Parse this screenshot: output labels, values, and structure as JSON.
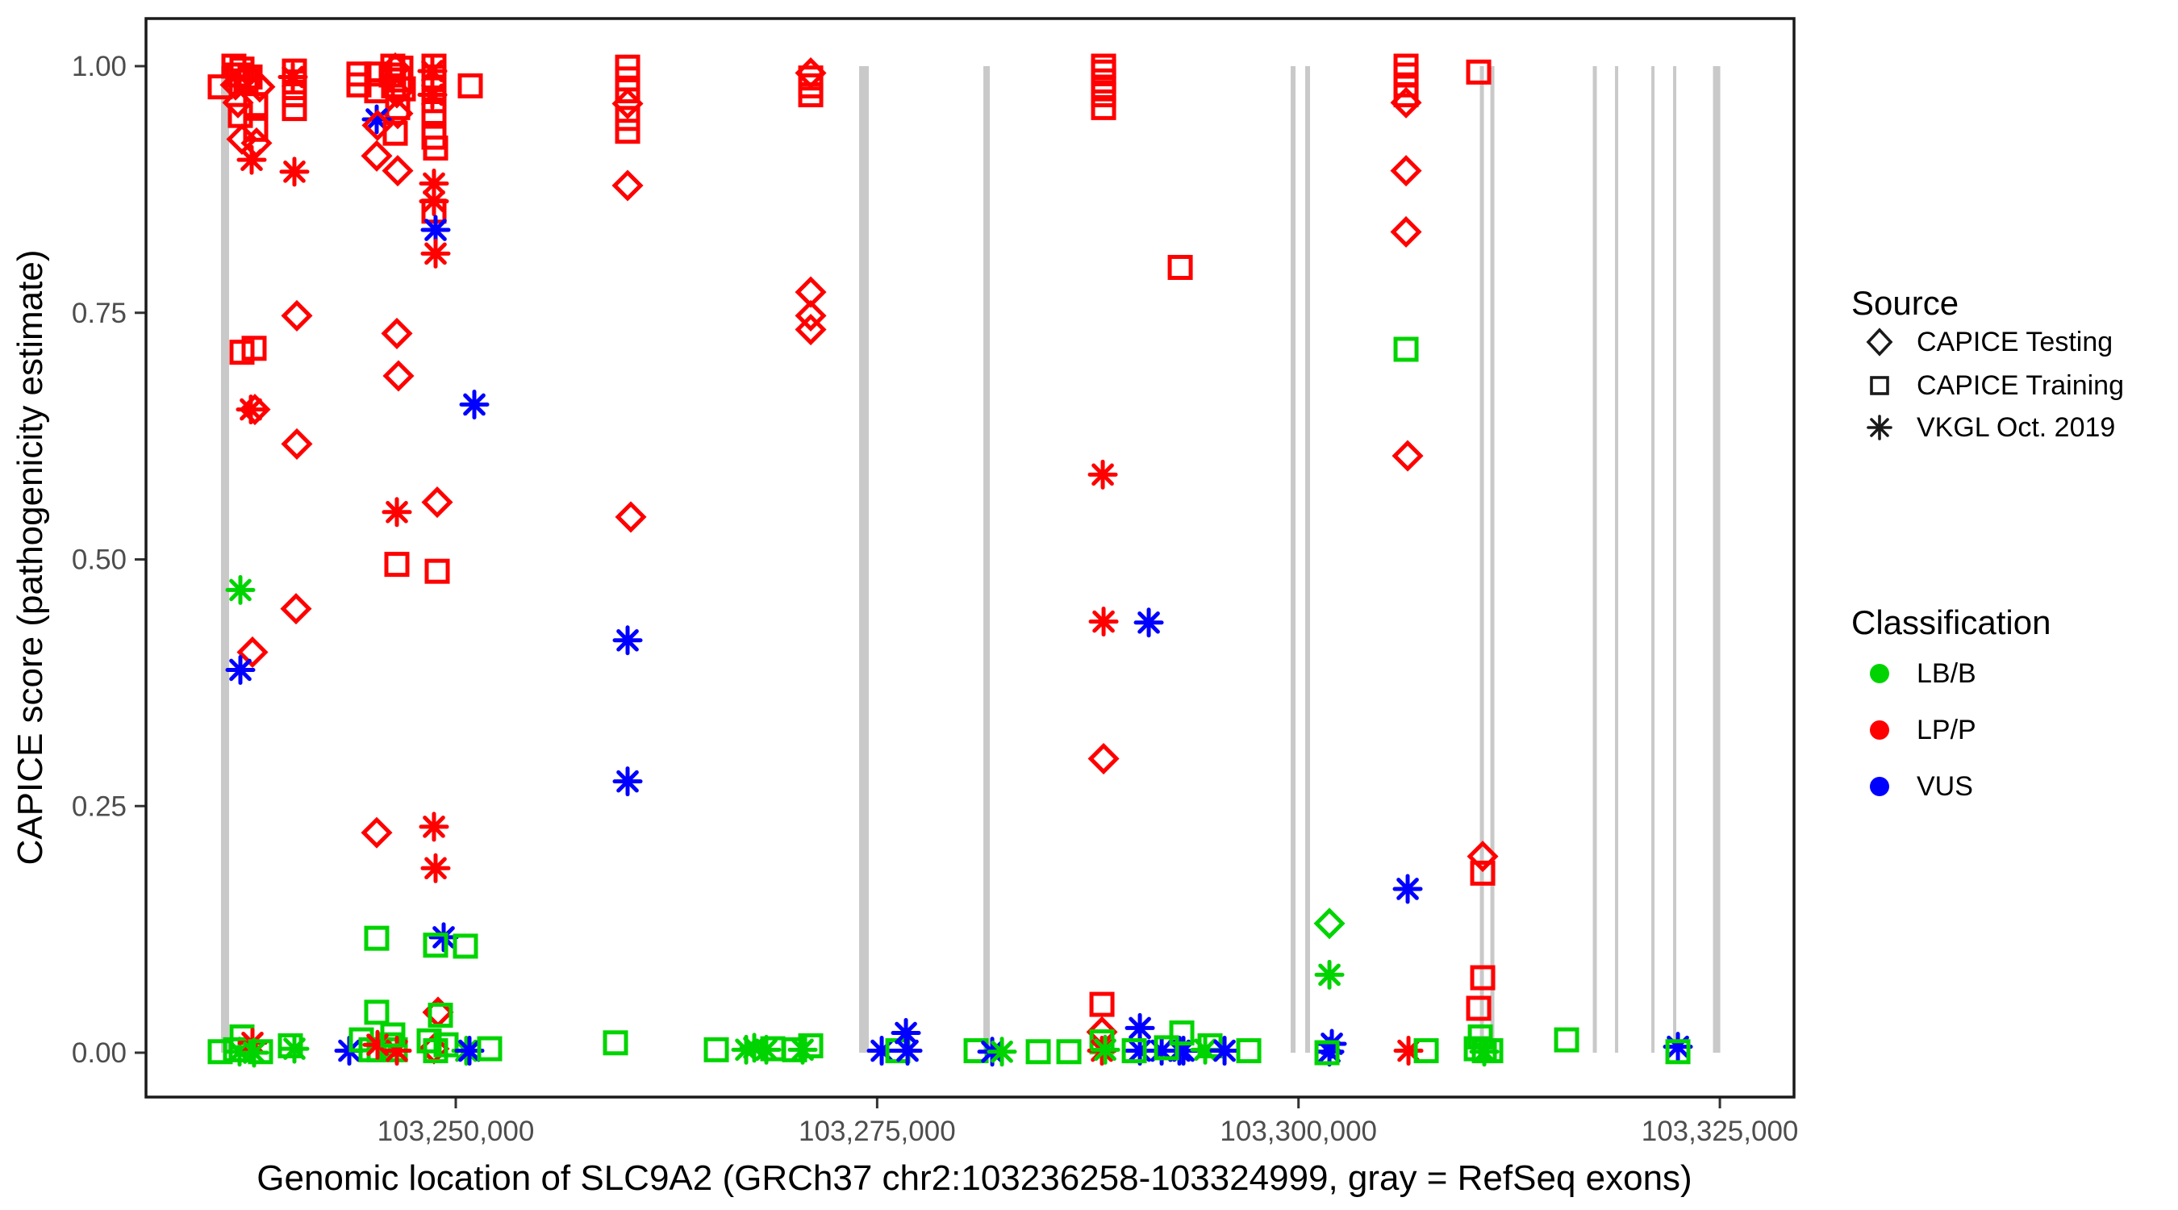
{
  "legend_source": {
    "title": "Source",
    "items": [
      {
        "shape": "diamond",
        "label": "CAPICE Testing"
      },
      {
        "shape": "square",
        "label": "CAPICE Training"
      },
      {
        "shape": "asterisk",
        "label": "VKGL Oct. 2019"
      }
    ]
  },
  "legend_class": {
    "title": "Classification",
    "items": [
      {
        "key": "B",
        "color": "#00D400",
        "label": "LB/B"
      },
      {
        "key": "P",
        "color": "#FF0000",
        "label": "LP/P"
      },
      {
        "key": "V",
        "color": "#0000FF",
        "label": "VUS"
      }
    ]
  },
  "chart_data": {
    "type": "scatter",
    "title": "",
    "xlabel": "Genomic location of SLC9A2 (GRCh37 chr2:103236258-103324999, gray = RefSeq exons)",
    "ylabel": "CAPICE score (pathogenicity estimate)",
    "x_ticks": {
      "values": [
        103250000,
        103275000,
        103300000,
        103325000
      ],
      "labels": [
        "103,250,000",
        "103,275,000",
        "103,300,000",
        "103,325,000"
      ]
    },
    "y_ticks": {
      "values": [
        0,
        0.25,
        0.5,
        0.75,
        1.0
      ],
      "labels": [
        "0.00",
        "0.25",
        "0.50",
        "0.75",
        "1.00"
      ]
    },
    "x_range_bp": [
      103231800,
      103329400
    ],
    "y_range": [
      -0.047,
      1.047
    ],
    "grid": "off",
    "legend_position": "right",
    "colors": {
      "LB/B": "#00D400",
      "LP/P": "#FF0000",
      "VUS": "#0000FF"
    },
    "shape_meaning": {
      "diamond": "CAPICE Testing",
      "square": "CAPICE Training",
      "asterisk": "VKGL Oct. 2019"
    },
    "exon_color": "#C9C9C9",
    "exons_bp": [
      [
        103236311,
        479
      ],
      [
        103274219,
        574
      ],
      [
        103281495,
        383
      ],
      [
        103299680,
        287
      ],
      [
        103300541,
        287
      ],
      [
        103310880,
        239
      ],
      [
        103311503,
        239
      ],
      [
        103317581,
        239
      ],
      [
        103318873,
        191
      ],
      [
        103321027,
        191
      ],
      [
        103322319,
        191
      ],
      [
        103324808,
        431
      ]
    ],
    "points": [
      [
        103236024,
        0.979,
        "s",
        "P"
      ],
      [
        103236838,
        1.0,
        "s",
        "P"
      ],
      [
        103237316,
        0.997,
        "s",
        "P"
      ],
      [
        103237077,
        0.991,
        "s",
        "P"
      ],
      [
        103237795,
        0.989,
        "s",
        "P"
      ],
      [
        103237556,
        0.985,
        "s",
        "P"
      ],
      [
        103236933,
        0.981,
        "d",
        "P"
      ],
      [
        103238369,
        0.979,
        "d",
        "P"
      ],
      [
        103237077,
        0.963,
        "d",
        "P"
      ],
      [
        103238130,
        0.961,
        "s",
        "P"
      ],
      [
        103237221,
        0.95,
        "s",
        "P"
      ],
      [
        103238130,
        0.936,
        "s",
        "P"
      ],
      [
        103237316,
        0.926,
        "d",
        "P"
      ],
      [
        103238178,
        0.922,
        "d",
        "P"
      ],
      [
        103237891,
        0.905,
        "a",
        "P"
      ],
      [
        103237316,
        0.71,
        "s",
        "P"
      ],
      [
        103238034,
        0.714,
        "s",
        "P"
      ],
      [
        103237843,
        0.652,
        "a",
        "P"
      ],
      [
        103238082,
        0.652,
        "d",
        "P"
      ],
      [
        103237939,
        0.406,
        "d",
        "P"
      ],
      [
        103237221,
        0.469,
        "a",
        "B"
      ],
      [
        103237221,
        0.388,
        "a",
        "V"
      ],
      [
        103236024,
        0.001,
        "s",
        "B"
      ],
      [
        103236933,
        0.003,
        "s",
        "B"
      ],
      [
        103237316,
        0.016,
        "s",
        "B"
      ],
      [
        103237173,
        0.001,
        "a",
        "B"
      ],
      [
        103237939,
        0.01,
        "a",
        "P"
      ],
      [
        103238034,
        0.0,
        "a",
        "B"
      ],
      [
        103238417,
        0.001,
        "s",
        "B"
      ],
      [
        103240427,
        0.995,
        "s",
        "P"
      ],
      [
        103240332,
        0.989,
        "a",
        "P"
      ],
      [
        103240427,
        0.984,
        "s",
        "P"
      ],
      [
        103240427,
        0.971,
        "s",
        "P"
      ],
      [
        103240427,
        0.957,
        "s",
        "P"
      ],
      [
        103240427,
        0.893,
        "a",
        "P"
      ],
      [
        103240571,
        0.747,
        "d",
        "P"
      ],
      [
        103240571,
        0.617,
        "d",
        "P"
      ],
      [
        103240523,
        0.45,
        "d",
        "P"
      ],
      [
        103240188,
        0.007,
        "s",
        "B"
      ],
      [
        103240427,
        0.004,
        "a",
        "B"
      ],
      [
        103243682,
        0.002,
        "a",
        "V"
      ],
      [
        103244256,
        0.992,
        "s",
        "P"
      ],
      [
        103244256,
        0.981,
        "s",
        "P"
      ],
      [
        103245309,
        0.992,
        "s",
        "P"
      ],
      [
        103245309,
        0.975,
        "s",
        "P"
      ],
      [
        103246266,
        1.0,
        "s",
        "P"
      ],
      [
        103246745,
        0.998,
        "s",
        "P"
      ],
      [
        103246171,
        0.991,
        "s",
        "P"
      ],
      [
        103246649,
        0.986,
        "s",
        "P"
      ],
      [
        103246314,
        0.98,
        "s",
        "P"
      ],
      [
        103246889,
        0.977,
        "s",
        "P"
      ],
      [
        103246410,
        0.998,
        "d",
        "P"
      ],
      [
        103246506,
        0.973,
        "d",
        "P"
      ],
      [
        103246554,
        0.958,
        "s",
        "P"
      ],
      [
        103246554,
        0.952,
        "d",
        "P"
      ],
      [
        103245309,
        0.946,
        "a",
        "V"
      ],
      [
        103245357,
        0.94,
        "d",
        "P"
      ],
      [
        103246410,
        0.932,
        "s",
        "P"
      ],
      [
        103245309,
        0.909,
        "d",
        "P"
      ],
      [
        103246554,
        0.894,
        "d",
        "P"
      ],
      [
        103246506,
        0.729,
        "d",
        "P"
      ],
      [
        103246601,
        0.686,
        "d",
        "P"
      ],
      [
        103246506,
        0.548,
        "a",
        "P"
      ],
      [
        103246506,
        0.495,
        "s",
        "P"
      ],
      [
        103245309,
        0.223,
        "d",
        "P"
      ],
      [
        103245309,
        0.116,
        "s",
        "B"
      ],
      [
        103245309,
        0.041,
        "s",
        "B"
      ],
      [
        103244400,
        0.013,
        "s",
        "B"
      ],
      [
        103244974,
        0.003,
        "s",
        "B"
      ],
      [
        103245453,
        0.003,
        "s",
        "B"
      ],
      [
        103246075,
        0.008,
        "s",
        "B"
      ],
      [
        103246410,
        0.003,
        "s",
        "B"
      ],
      [
        103245357,
        0.008,
        "a",
        "P"
      ],
      [
        103246506,
        0.002,
        "a",
        "P"
      ],
      [
        103246266,
        0.018,
        "s",
        "B"
      ],
      [
        103248707,
        1.0,
        "s",
        "P"
      ],
      [
        103248707,
        0.989,
        "s",
        "P"
      ],
      [
        103248707,
        0.977,
        "s",
        "P"
      ],
      [
        103248707,
        0.965,
        "s",
        "P"
      ],
      [
        103248707,
        0.953,
        "s",
        "P"
      ],
      [
        103248611,
        0.995,
        "a",
        "P"
      ],
      [
        103248611,
        0.971,
        "a",
        "P"
      ],
      [
        103248707,
        0.928,
        "s",
        "P"
      ],
      [
        103248803,
        0.917,
        "s",
        "P"
      ],
      [
        103248707,
        0.881,
        "a",
        "P"
      ],
      [
        103248707,
        0.863,
        "a",
        "P"
      ],
      [
        103248707,
        0.853,
        "s",
        "P"
      ],
      [
        103248803,
        0.834,
        "a",
        "V"
      ],
      [
        103248803,
        0.81,
        "a",
        "P"
      ],
      [
        103248899,
        0.558,
        "d",
        "P"
      ],
      [
        103248899,
        0.488,
        "s",
        "P"
      ],
      [
        103248707,
        0.229,
        "a",
        "P"
      ],
      [
        103248803,
        0.187,
        "a",
        "P"
      ],
      [
        103249282,
        0.117,
        "a",
        "V"
      ],
      [
        103248803,
        0.109,
        "s",
        "B"
      ],
      [
        103248947,
        0.041,
        "d",
        "P"
      ],
      [
        103249090,
        0.038,
        "s",
        "B"
      ],
      [
        103248707,
        0.004,
        "d",
        "P"
      ],
      [
        103248420,
        0.012,
        "s",
        "B"
      ],
      [
        103248803,
        0.002,
        "s",
        "B"
      ],
      [
        103249425,
        0.008,
        "s",
        "B"
      ],
      [
        103250574,
        0.108,
        "s",
        "B"
      ],
      [
        103250622,
        0.002,
        "a",
        "B"
      ],
      [
        103250813,
        0.002,
        "a",
        "V"
      ],
      [
        103250861,
        0.98,
        "s",
        "P"
      ],
      [
        103251101,
        0.657,
        "a",
        "V"
      ],
      [
        103252010,
        0.004,
        "s",
        "B"
      ],
      [
        103259477,
        0.01,
        "s",
        "B"
      ],
      [
        103260195,
        0.999,
        "s",
        "P"
      ],
      [
        103260195,
        0.987,
        "s",
        "P"
      ],
      [
        103260195,
        0.975,
        "s",
        "P"
      ],
      [
        103260195,
        0.962,
        "d",
        "P"
      ],
      [
        103260195,
        0.947,
        "s",
        "P"
      ],
      [
        103260195,
        0.934,
        "s",
        "P"
      ],
      [
        103260195,
        0.879,
        "d",
        "P"
      ],
      [
        103260195,
        0.418,
        "a",
        "V"
      ],
      [
        103260195,
        0.275,
        "a",
        "V"
      ],
      [
        103260386,
        0.543,
        "d",
        "P"
      ],
      [
        103265460,
        0.003,
        "s",
        "B"
      ],
      [
        103267231,
        0.003,
        "a",
        "B"
      ],
      [
        103267710,
        0.005,
        "a",
        "B"
      ],
      [
        103268427,
        0.003,
        "a",
        "B"
      ],
      [
        103268810,
        0.004,
        "s",
        "B"
      ],
      [
        103270103,
        0.003,
        "s",
        "B"
      ],
      [
        103270581,
        0.003,
        "a",
        "B"
      ],
      [
        103271060,
        0.007,
        "s",
        "B"
      ],
      [
        103271060,
        0.993,
        "d",
        "P"
      ],
      [
        103271060,
        0.988,
        "s",
        "P"
      ],
      [
        103271060,
        0.98,
        "s",
        "P"
      ],
      [
        103271060,
        0.971,
        "s",
        "P"
      ],
      [
        103271060,
        0.771,
        "d",
        "P"
      ],
      [
        103271060,
        0.747,
        "d",
        "P"
      ],
      [
        103271060,
        0.733,
        "d",
        "P"
      ],
      [
        103275272,
        0.002,
        "a",
        "V"
      ],
      [
        103276229,
        0.002,
        "s",
        "B"
      ],
      [
        103276708,
        0.02,
        "a",
        "V"
      ],
      [
        103276804,
        0.002,
        "a",
        "V"
      ],
      [
        103280872,
        0.002,
        "s",
        "B"
      ],
      [
        103281830,
        0.001,
        "a",
        "V"
      ],
      [
        103282404,
        0.001,
        "a",
        "B"
      ],
      [
        103284558,
        0.001,
        "s",
        "B"
      ],
      [
        103286377,
        0.001,
        "s",
        "B"
      ],
      [
        103288435,
        1.0,
        "s",
        "P"
      ],
      [
        103288435,
        0.994,
        "s",
        "P"
      ],
      [
        103288435,
        0.985,
        "s",
        "P"
      ],
      [
        103288435,
        0.977,
        "s",
        "P"
      ],
      [
        103288435,
        0.971,
        "s",
        "P"
      ],
      [
        103288435,
        0.958,
        "s",
        "P"
      ],
      [
        103288387,
        0.586,
        "a",
        "P"
      ],
      [
        103288435,
        0.437,
        "a",
        "P"
      ],
      [
        103288435,
        0.298,
        "d",
        "P"
      ],
      [
        103288339,
        0.049,
        "s",
        "P"
      ],
      [
        103288339,
        0.021,
        "d",
        "P"
      ],
      [
        103288339,
        0.011,
        "s",
        "B"
      ],
      [
        103288339,
        0.002,
        "a",
        "P"
      ],
      [
        103288531,
        0.003,
        "a",
        "B"
      ],
      [
        103291115,
        0.436,
        "a",
        "V"
      ],
      [
        103292982,
        0.796,
        "s",
        "P"
      ],
      [
        103290589,
        0.025,
        "a",
        "V"
      ],
      [
        103290589,
        0.002,
        "a",
        "V"
      ],
      [
        103290254,
        0.002,
        "s",
        "B"
      ],
      [
        103291881,
        0.002,
        "a",
        "V"
      ],
      [
        103292934,
        0.002,
        "a",
        "V"
      ],
      [
        103293173,
        0.002,
        "a",
        "V"
      ],
      [
        103292168,
        0.005,
        "s",
        "B"
      ],
      [
        103293077,
        0.02,
        "s",
        "B"
      ],
      [
        103294465,
        0.003,
        "a",
        "B"
      ],
      [
        103294752,
        0.007,
        "s",
        "B"
      ],
      [
        103295613,
        0.002,
        "a",
        "V"
      ],
      [
        103297049,
        0.002,
        "s",
        "B"
      ],
      [
        103301978,
        0.009,
        "a",
        "V"
      ],
      [
        103301835,
        0.001,
        "a",
        "V"
      ],
      [
        103301691,
        0.0,
        "s",
        "B"
      ],
      [
        103301835,
        0.131,
        "d",
        "B"
      ],
      [
        103301835,
        0.079,
        "a",
        "B"
      ],
      [
        103306381,
        1.0,
        "s",
        "P"
      ],
      [
        103306381,
        0.991,
        "s",
        "P"
      ],
      [
        103306381,
        0.981,
        "s",
        "P"
      ],
      [
        103306381,
        0.971,
        "s",
        "P"
      ],
      [
        103306381,
        0.963,
        "d",
        "P"
      ],
      [
        103306381,
        0.894,
        "d",
        "P"
      ],
      [
        103306381,
        0.832,
        "d",
        "P"
      ],
      [
        103306381,
        0.713,
        "s",
        "B"
      ],
      [
        103306477,
        0.605,
        "d",
        "P"
      ],
      [
        103306477,
        0.166,
        "a",
        "V"
      ],
      [
        103306525,
        0.002,
        "a",
        "P"
      ],
      [
        103307578,
        0.002,
        "s",
        "B"
      ],
      [
        103310689,
        0.994,
        "s",
        "P"
      ],
      [
        103310928,
        0.199,
        "d",
        "P"
      ],
      [
        103310928,
        0.182,
        "s",
        "P"
      ],
      [
        103310928,
        0.076,
        "s",
        "P"
      ],
      [
        103310689,
        0.045,
        "s",
        "P"
      ],
      [
        103310785,
        0.016,
        "s",
        "B"
      ],
      [
        103310545,
        0.004,
        "s",
        "B"
      ],
      [
        103311024,
        0.002,
        "s",
        "B"
      ],
      [
        103311407,
        0.002,
        "s",
        "B"
      ],
      [
        103311024,
        0.001,
        "a",
        "B"
      ],
      [
        103315906,
        0.013,
        "s",
        "B"
      ],
      [
        103322511,
        0.006,
        "a",
        "V"
      ],
      [
        103322511,
        0.001,
        "s",
        "B"
      ]
    ]
  }
}
